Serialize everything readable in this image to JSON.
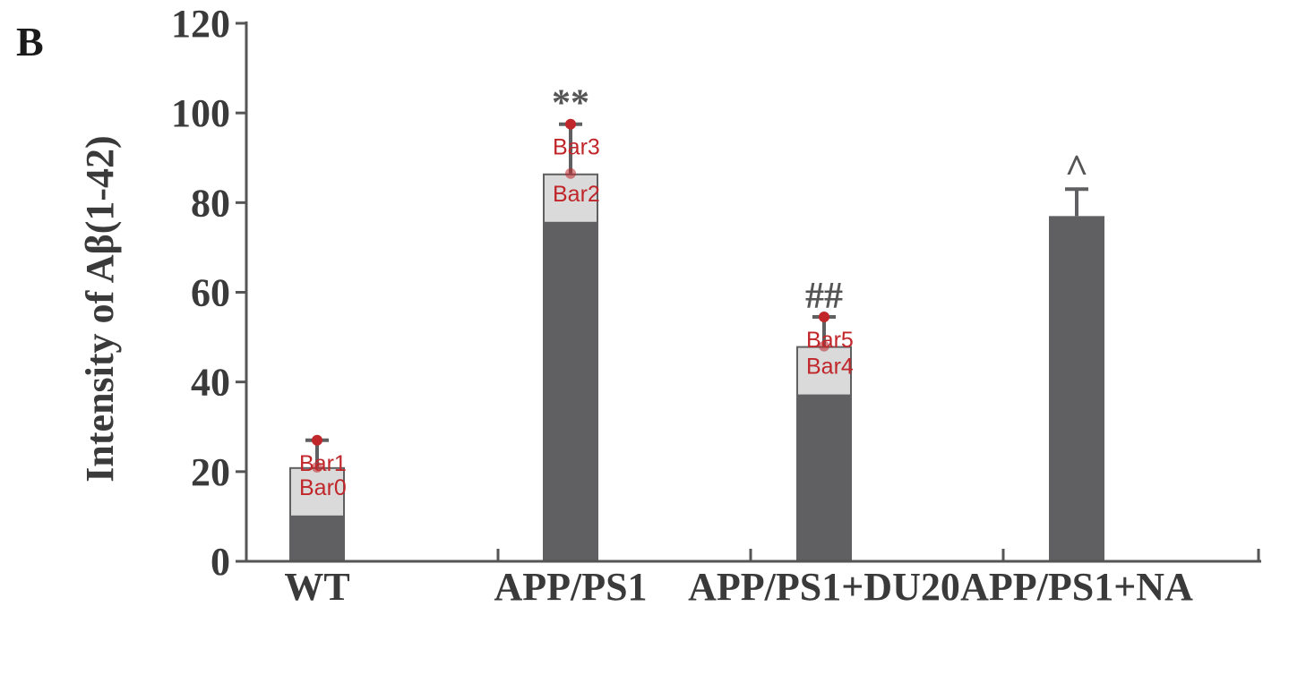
{
  "panel_label": "B",
  "chart_data": {
    "type": "bar",
    "categories": [
      "WT",
      "APP/PS1",
      "APP/PS1+DU20",
      "APP/PS1+NA"
    ],
    "values": [
      21,
      86.5,
      48,
      77
    ],
    "error_upper": [
      27,
      97.5,
      54.5,
      83
    ],
    "significance": [
      "",
      "**",
      "##",
      "^"
    ],
    "ylabel": "Intensity of Aβ(1-42)",
    "xlabel": "",
    "ylim": [
      0,
      120
    ],
    "yticks": [
      "0",
      "20",
      "40",
      "60",
      "80",
      "100",
      "120"
    ],
    "grid": false,
    "colors": {
      "bar": "#606062",
      "axis": "#555555",
      "text": "#3a3a3a",
      "annotation": "#c0262a",
      "highlight": "#e0e0e0"
    },
    "annotations": [
      {
        "label": "Bar0",
        "category": 0,
        "y": 21
      },
      {
        "label": "Bar1",
        "category": 0,
        "y": 27
      },
      {
        "label": "Bar2",
        "category": 1,
        "y": 86.5
      },
      {
        "label": "Bar3",
        "category": 1,
        "y": 97.5
      },
      {
        "label": "Bar4",
        "category": 2,
        "y": 48
      },
      {
        "label": "Bar5",
        "category": 2,
        "y": 54.5
      }
    ]
  }
}
